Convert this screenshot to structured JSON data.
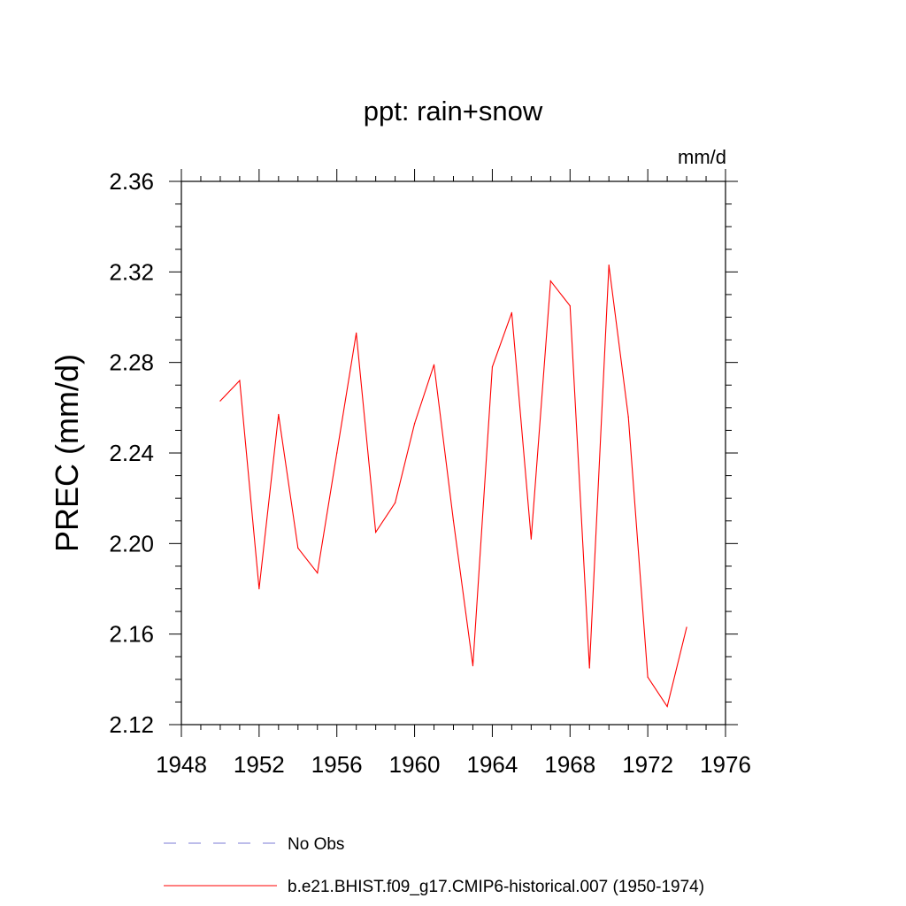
{
  "chart_data": {
    "type": "line",
    "title": "ppt: rain+snow",
    "units": "mm/d",
    "xlabel": "",
    "ylabel": "PREC  (mm/d)",
    "xlim": [
      1948,
      1976
    ],
    "ylim": [
      2.12,
      2.36
    ],
    "xticks": [
      1948,
      1952,
      1956,
      1960,
      1964,
      1968,
      1972,
      1976
    ],
    "yticks": [
      2.12,
      2.16,
      2.2,
      2.24,
      2.28,
      2.32,
      2.36
    ],
    "xtick_labels": [
      "1948",
      "1952",
      "1956",
      "1960",
      "1964",
      "1968",
      "1972",
      "1976"
    ],
    "ytick_labels": [
      "2.12",
      "2.16",
      "2.20",
      "2.24",
      "2.28",
      "2.32",
      "2.36"
    ],
    "x": [
      1950,
      1951,
      1952,
      1953,
      1954,
      1955,
      1956,
      1957,
      1958,
      1959,
      1960,
      1961,
      1962,
      1963,
      1964,
      1965,
      1966,
      1967,
      1968,
      1969,
      1970,
      1971,
      1972,
      1973,
      1974
    ],
    "series": [
      {
        "name": "b.e21.BHIST.f09_g17.CMIP6-historical.007 (1950-1974)",
        "color": "#ff0000",
        "dash": "solid",
        "values": [
          2.263,
          2.272,
          2.18,
          2.257,
          2.198,
          2.187,
          2.24,
          2.293,
          2.205,
          2.218,
          2.253,
          2.279,
          2.21,
          2.146,
          2.278,
          2.302,
          2.202,
          2.316,
          2.305,
          2.145,
          2.323,
          2.256,
          2.141,
          2.128,
          2.163
        ]
      }
    ],
    "legend": {
      "placement": "bottom",
      "entries": [
        {
          "label": "No Obs",
          "color": "#7b7bd6",
          "dash": "dashed"
        },
        {
          "label": "b.e21.BHIST.f09_g17.CMIP6-historical.007 (1950-1974)",
          "color": "#ff0000",
          "dash": "solid"
        }
      ]
    }
  }
}
